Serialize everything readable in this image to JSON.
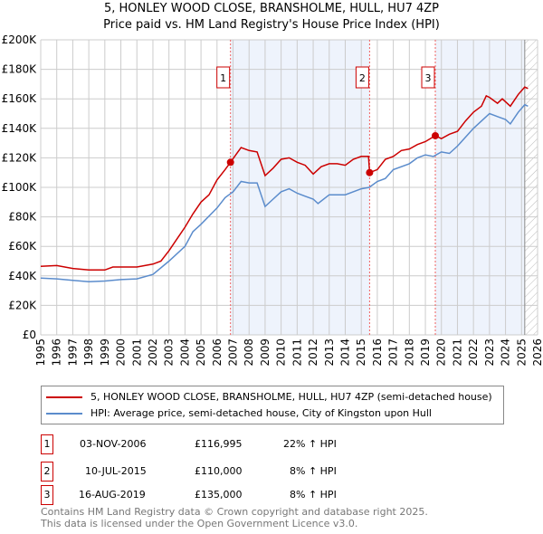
{
  "title": "5, HONLEY WOOD CLOSE, BRANSHOLME, HULL, HU7 4ZP",
  "subtitle": "Price paid vs. HM Land Registry's House Price Index (HPI)",
  "chart_data": {
    "type": "line",
    "title": "5, HONLEY WOOD CLOSE, BRANSHOLME, HULL, HU7 4ZP",
    "subtitle": "Price paid vs. HM Land Registry's House Price Index (HPI)",
    "xlim": [
      1995,
      2026
    ],
    "ylim": [
      0,
      200000
    ],
    "x_ticks": [
      "1995",
      "1996",
      "1997",
      "1998",
      "1999",
      "2000",
      "2001",
      "2002",
      "2003",
      "2004",
      "2005",
      "2006",
      "2007",
      "2008",
      "2009",
      "2010",
      "2011",
      "2012",
      "2013",
      "2014",
      "2015",
      "2016",
      "2017",
      "2018",
      "2019",
      "2020",
      "2021",
      "2022",
      "2023",
      "2024",
      "2025",
      "2026"
    ],
    "y_ticks": [
      {
        "v": 0,
        "l": "£0"
      },
      {
        "v": 20000,
        "l": "£20K"
      },
      {
        "v": 40000,
        "l": "£40K"
      },
      {
        "v": 60000,
        "l": "£60K"
      },
      {
        "v": 80000,
        "l": "£80K"
      },
      {
        "v": 100000,
        "l": "£100K"
      },
      {
        "v": 120000,
        "l": "£120K"
      },
      {
        "v": 140000,
        "l": "£140K"
      },
      {
        "v": 160000,
        "l": "£160K"
      },
      {
        "v": 180000,
        "l": "£180K"
      },
      {
        "v": 200000,
        "l": "£200K"
      }
    ],
    "grid": true,
    "shaded_ranges": [
      [
        2006.84,
        2015.52
      ],
      [
        2019.62,
        2025.2
      ]
    ],
    "hatched_from": 2025.2,
    "series": [
      {
        "name": "5, HONLEY WOOD CLOSE, BRANSHOLME, HULL, HU7 4ZP (semi-detached house)",
        "color": "#cc0000",
        "x": [
          1995,
          1996,
          1997,
          1998,
          1999,
          1999.5,
          2000,
          2001,
          2002,
          2002.5,
          2003,
          2003.5,
          2004,
          2004.5,
          2005,
          2005.5,
          2006,
          2006.5,
          2006.84,
          2007.3,
          2007.5,
          2008,
          2008.5,
          2009,
          2009.5,
          2010,
          2010.5,
          2011,
          2011.5,
          2012,
          2012.5,
          2013,
          2013.5,
          2014,
          2014.5,
          2015,
          2015.45,
          2015.52,
          2016,
          2016.5,
          2017,
          2017.5,
          2018,
          2018.5,
          2019,
          2019.62,
          2020,
          2020.5,
          2021,
          2021.5,
          2022,
          2022.5,
          2022.8,
          2023,
          2023.5,
          2023.8,
          2024.3,
          2024.8,
          2025.2,
          2025.4
        ],
        "y": [
          46500,
          47000,
          45000,
          44000,
          44000,
          46000,
          46000,
          46000,
          48000,
          50000,
          57000,
          65000,
          73000,
          82000,
          90000,
          95000,
          105000,
          112000,
          116995,
          124000,
          127000,
          125000,
          124000,
          108000,
          113000,
          119000,
          120000,
          117000,
          115000,
          109000,
          114000,
          116000,
          116000,
          115000,
          119000,
          121000,
          121000,
          110000,
          112000,
          119000,
          121000,
          125000,
          126000,
          129000,
          131000,
          135000,
          133000,
          136000,
          138000,
          145000,
          151000,
          155000,
          162000,
          161000,
          157000,
          160000,
          155000,
          163000,
          168000,
          167000
        ]
      },
      {
        "name": "HPI: Average price, semi-detached house, City of Kingston upon Hull",
        "color": "#5b8ccc",
        "x": [
          1995,
          1996,
          1997,
          1998,
          1999,
          2000,
          2001,
          2002,
          2003,
          2004,
          2004.5,
          2005,
          2006,
          2006.5,
          2007,
          2007.5,
          2008,
          2008.5,
          2009,
          2009.5,
          2010,
          2010.5,
          2011,
          2011.5,
          2012,
          2012.3,
          2013,
          2014,
          2015,
          2015.5,
          2016,
          2016.5,
          2017,
          2018,
          2018.5,
          2019,
          2019.5,
          2020,
          2020.5,
          2021,
          2021.5,
          2022,
          2022.5,
          2023,
          2023.5,
          2024,
          2024.3,
          2024.8,
          2025.2,
          2025.4
        ],
        "y": [
          38500,
          38000,
          37000,
          36000,
          36500,
          37500,
          38000,
          41000,
          50000,
          60000,
          70000,
          75000,
          86000,
          93000,
          97000,
          104000,
          103000,
          103000,
          87000,
          92000,
          97000,
          99000,
          96000,
          94000,
          92000,
          89000,
          95000,
          95000,
          99000,
          100000,
          104000,
          106000,
          112000,
          116000,
          120000,
          122000,
          121000,
          124000,
          123000,
          128000,
          134000,
          140000,
          145000,
          150000,
          148000,
          146000,
          143000,
          151000,
          156000,
          155000
        ]
      }
    ],
    "sales": [
      {
        "n": "1",
        "x": 2006.84,
        "y": 116995
      },
      {
        "n": "2",
        "x": 2015.52,
        "y": 110000
      },
      {
        "n": "3",
        "x": 2019.62,
        "y": 135000
      }
    ]
  },
  "legend": {
    "items": [
      {
        "label": "5, HONLEY WOOD CLOSE, BRANSHOLME, HULL, HU7 4ZP (semi-detached house)",
        "color": "#cc0000"
      },
      {
        "label": "HPI: Average price, semi-detached house, City of Kingston upon Hull",
        "color": "#5b8ccc"
      }
    ]
  },
  "transactions": [
    {
      "n": "1",
      "date": "03-NOV-2006",
      "price": "£116,995",
      "hpi": "22% ↑ HPI"
    },
    {
      "n": "2",
      "date": "10-JUL-2015",
      "price": "£110,000",
      "hpi": "8% ↑ HPI"
    },
    {
      "n": "3",
      "date": "16-AUG-2019",
      "price": "£135,000",
      "hpi": "8% ↑ HPI"
    }
  ],
  "footer": {
    "line1": "Contains HM Land Registry data © Crown copyright and database right 2025.",
    "line2": "This data is licensed under the Open Government Licence v3.0."
  }
}
